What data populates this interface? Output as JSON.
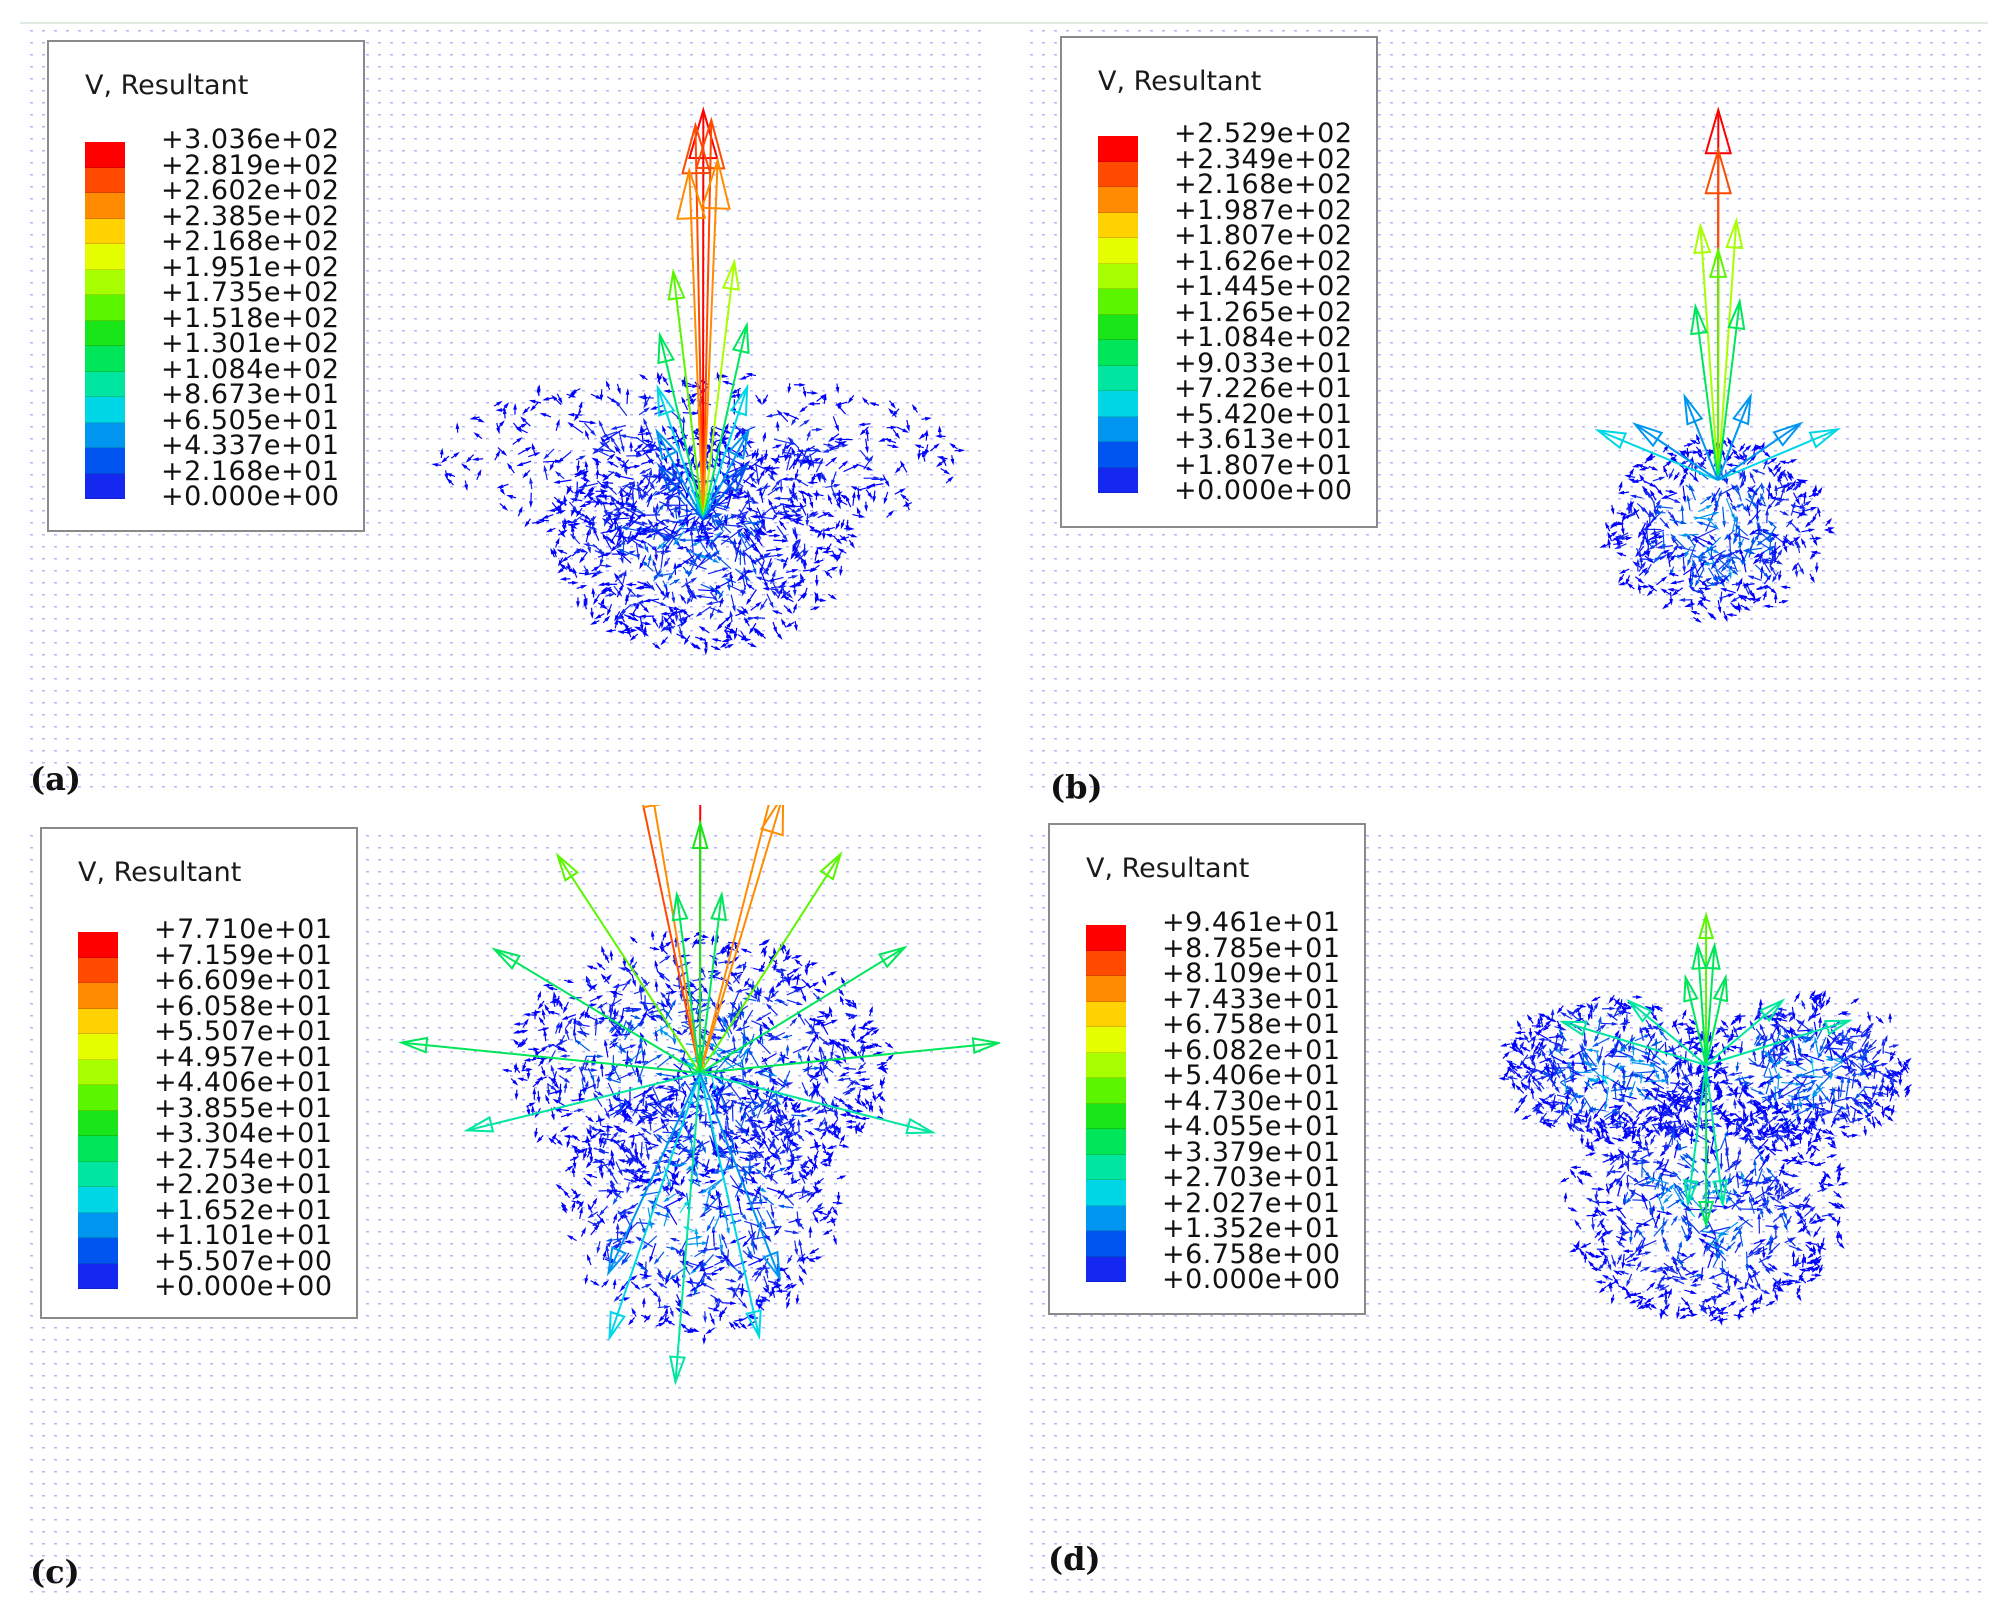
{
  "panels": [
    {
      "id": "a",
      "label": "(a)",
      "legend_title": "V, Resultant",
      "legend_values": [
        "+3.036e+02",
        "+2.819e+02",
        "+2.602e+02",
        "+2.385e+02",
        "+2.168e+02",
        "+1.951e+02",
        "+1.735e+02",
        "+1.518e+02",
        "+1.301e+02",
        "+1.084e+02",
        "+8.673e+01",
        "+6.505e+01",
        "+4.337e+01",
        "+2.168e+01",
        "+0.000e+00"
      ]
    },
    {
      "id": "b",
      "label": "(b)",
      "legend_title": "V, Resultant",
      "legend_values": [
        "+2.529e+02",
        "+2.349e+02",
        "+2.168e+02",
        "+1.987e+02",
        "+1.807e+02",
        "+1.626e+02",
        "+1.445e+02",
        "+1.265e+02",
        "+1.084e+02",
        "+9.033e+01",
        "+7.226e+01",
        "+5.420e+01",
        "+3.613e+01",
        "+1.807e+01",
        "+0.000e+00"
      ]
    },
    {
      "id": "c",
      "label": "(c)",
      "legend_title": "V, Resultant",
      "legend_values": [
        "+7.710e+01",
        "+7.159e+01",
        "+6.609e+01",
        "+6.058e+01",
        "+5.507e+01",
        "+4.957e+01",
        "+4.406e+01",
        "+3.855e+01",
        "+3.304e+01",
        "+2.754e+01",
        "+2.203e+01",
        "+1.652e+01",
        "+1.101e+01",
        "+5.507e+00",
        "+0.000e+00"
      ]
    },
    {
      "id": "d",
      "label": "(d)",
      "legend_title": "V, Resultant",
      "legend_values": [
        "+9.461e+01",
        "+8.785e+01",
        "+8.109e+01",
        "+7.433e+01",
        "+6.758e+01",
        "+6.082e+01",
        "+5.406e+01",
        "+4.730e+01",
        "+4.055e+01",
        "+3.379e+01",
        "+2.703e+01",
        "+2.027e+01",
        "+1.352e+01",
        "+6.758e+00",
        "+0.000e+00"
      ]
    }
  ],
  "colormap": [
    "#ff0000",
    "#ff4a00",
    "#ff8c00",
    "#ffd200",
    "#e6ff00",
    "#a8ff00",
    "#5cf500",
    "#19e619",
    "#00e65a",
    "#00e6a0",
    "#00d7e6",
    "#0096f0",
    "#0055f0",
    "#1428f0",
    "#0000ff"
  ],
  "background_arrow_color": "#2a2ae6"
}
